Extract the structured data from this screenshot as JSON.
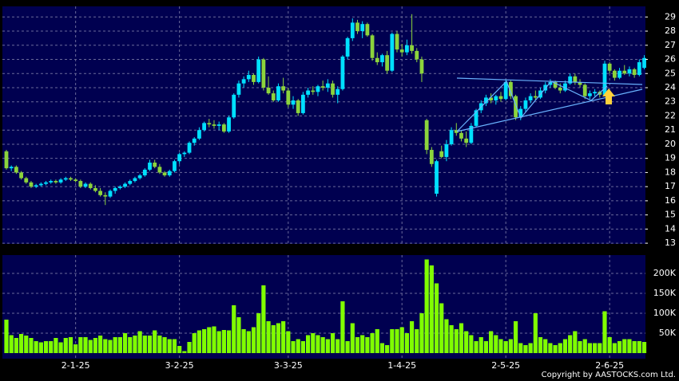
{
  "chart_data": {
    "type": "candlestick",
    "categories": [
      null,
      null,
      null,
      null,
      null,
      null,
      null,
      null,
      null,
      null,
      null,
      null,
      null,
      null,
      "2-1-25",
      null,
      null,
      null,
      null,
      null,
      null,
      null,
      null,
      null,
      null,
      null,
      null,
      null,
      null,
      null,
      null,
      null,
      null,
      null,
      null,
      "3-2-25",
      null,
      null,
      null,
      null,
      null,
      null,
      null,
      null,
      null,
      null,
      null,
      null,
      null,
      null,
      null,
      null,
      null,
      null,
      null,
      null,
      null,
      "3-3-25",
      null,
      null,
      null,
      null,
      null,
      null,
      null,
      null,
      null,
      null,
      null,
      null,
      null,
      null,
      null,
      null,
      null,
      null,
      null,
      null,
      null,
      null,
      "1-4-25",
      null,
      null,
      null,
      null,
      null,
      null,
      null,
      null,
      null,
      null,
      null,
      null,
      null,
      null,
      null,
      null,
      null,
      null,
      null,
      null,
      "2-5-25",
      null,
      null,
      null,
      null,
      null,
      null,
      null,
      null,
      null,
      null,
      null,
      null,
      null,
      null,
      null,
      null,
      null,
      null,
      null,
      null,
      "2-6-25",
      null,
      null,
      null,
      null,
      null,
      null,
      null
    ],
    "ohlc": [
      [
        19.5,
        19.6,
        18.2,
        18.3
      ],
      [
        18.3,
        18.5,
        18.1,
        18.4
      ],
      [
        18.4,
        18.5,
        17.9,
        18.0
      ],
      [
        18.0,
        18.1,
        17.5,
        17.6
      ],
      [
        17.6,
        17.7,
        17.2,
        17.3
      ],
      [
        17.3,
        17.4,
        16.9,
        17.0
      ],
      [
        17.0,
        17.2,
        16.9,
        17.1
      ],
      [
        17.1,
        17.3,
        17.0,
        17.2
      ],
      [
        17.2,
        17.4,
        17.1,
        17.3
      ],
      [
        17.3,
        17.5,
        17.2,
        17.4
      ],
      [
        17.4,
        17.5,
        17.2,
        17.3
      ],
      [
        17.3,
        17.6,
        17.2,
        17.5
      ],
      [
        17.5,
        17.7,
        17.4,
        17.6
      ],
      [
        17.6,
        17.7,
        17.4,
        17.5
      ],
      [
        17.5,
        17.6,
        17.3,
        17.4
      ],
      [
        17.4,
        17.5,
        16.9,
        17.0
      ],
      [
        17.0,
        17.3,
        16.9,
        17.2
      ],
      [
        17.2,
        17.3,
        16.8,
        16.9
      ],
      [
        16.9,
        17.1,
        16.6,
        16.7
      ],
      [
        16.7,
        16.9,
        16.3,
        16.4
      ],
      [
        16.4,
        16.6,
        15.7,
        16.3
      ],
      [
        16.3,
        16.8,
        16.2,
        16.7
      ],
      [
        16.7,
        17.0,
        16.5,
        16.9
      ],
      [
        16.9,
        17.1,
        16.8,
        17.0
      ],
      [
        17.0,
        17.3,
        16.9,
        17.2
      ],
      [
        17.2,
        17.5,
        17.1,
        17.4
      ],
      [
        17.4,
        17.7,
        17.3,
        17.6
      ],
      [
        17.6,
        17.9,
        17.5,
        17.8
      ],
      [
        17.8,
        18.3,
        17.7,
        18.2
      ],
      [
        18.2,
        18.9,
        18.1,
        18.7
      ],
      [
        18.7,
        18.9,
        18.3,
        18.4
      ],
      [
        18.4,
        18.6,
        17.9,
        18.0
      ],
      [
        18.0,
        18.1,
        17.7,
        17.8
      ],
      [
        17.8,
        18.2,
        17.7,
        18.1
      ],
      [
        18.1,
        18.9,
        18.0,
        18.8
      ],
      [
        18.8,
        19.4,
        18.6,
        19.3
      ],
      [
        19.3,
        19.5,
        19.1,
        19.4
      ],
      [
        19.4,
        20.2,
        19.3,
        20.1
      ],
      [
        20.1,
        20.5,
        19.9,
        20.4
      ],
      [
        20.4,
        21.2,
        20.3,
        21.0
      ],
      [
        21.0,
        21.6,
        20.9,
        21.5
      ],
      [
        21.5,
        21.8,
        21.2,
        21.4
      ],
      [
        21.4,
        21.7,
        21.1,
        21.3
      ],
      [
        21.3,
        21.6,
        21.0,
        21.4
      ],
      [
        21.4,
        21.5,
        20.8,
        20.9
      ],
      [
        20.9,
        22.0,
        20.8,
        21.9
      ],
      [
        21.9,
        23.6,
        21.8,
        23.5
      ],
      [
        23.5,
        24.5,
        23.3,
        24.3
      ],
      [
        24.3,
        24.8,
        24.0,
        24.6
      ],
      [
        24.6,
        25.2,
        24.4,
        24.9
      ],
      [
        24.9,
        25.0,
        24.2,
        24.4
      ],
      [
        24.4,
        26.2,
        24.3,
        26.0
      ],
      [
        26.0,
        26.1,
        23.8,
        24.0
      ],
      [
        24.0,
        24.8,
        23.5,
        23.6
      ],
      [
        23.6,
        23.8,
        23.0,
        23.1
      ],
      [
        23.1,
        24.3,
        23.0,
        24.1
      ],
      [
        24.1,
        24.7,
        23.6,
        23.8
      ],
      [
        23.8,
        24.0,
        22.6,
        22.8
      ],
      [
        22.8,
        23.4,
        22.5,
        23.1
      ],
      [
        23.1,
        23.2,
        22.0,
        22.2
      ],
      [
        22.2,
        23.7,
        22.1,
        23.5
      ],
      [
        23.5,
        24.0,
        23.3,
        23.8
      ],
      [
        23.8,
        24.1,
        23.5,
        23.7
      ],
      [
        23.7,
        24.2,
        23.4,
        24.1
      ],
      [
        24.1,
        24.5,
        23.8,
        24.0
      ],
      [
        24.0,
        24.6,
        23.7,
        24.3
      ],
      [
        24.3,
        24.5,
        23.3,
        23.5
      ],
      [
        23.5,
        24.1,
        22.9,
        23.9
      ],
      [
        23.9,
        26.3,
        23.8,
        26.2
      ],
      [
        26.2,
        27.6,
        26.0,
        27.5
      ],
      [
        27.5,
        28.9,
        27.3,
        28.6
      ],
      [
        28.6,
        28.8,
        27.8,
        28.0
      ],
      [
        28.0,
        28.7,
        27.5,
        28.5
      ],
      [
        28.5,
        28.6,
        27.6,
        27.7
      ],
      [
        27.7,
        27.8,
        25.9,
        26.1
      ],
      [
        26.1,
        26.5,
        25.6,
        25.8
      ],
      [
        25.8,
        26.4,
        25.5,
        26.3
      ],
      [
        26.3,
        26.6,
        25.0,
        25.2
      ],
      [
        25.2,
        27.9,
        25.1,
        27.8
      ],
      [
        27.8,
        28.0,
        26.5,
        26.7
      ],
      [
        26.7,
        27.1,
        26.2,
        26.5
      ],
      [
        26.5,
        27.4,
        26.3,
        27.0
      ],
      [
        27.0,
        29.2,
        26.4,
        26.6
      ],
      [
        26.6,
        26.8,
        25.8,
        26.0
      ],
      [
        26.0,
        26.2,
        24.4,
        25.0
      ],
      [
        21.7,
        21.8,
        19.3,
        19.6
      ],
      [
        19.6,
        19.8,
        18.4,
        18.6
      ],
      [
        16.5,
        18.9,
        16.3,
        18.8
      ],
      [
        19.5,
        19.9,
        19.0,
        19.1
      ],
      [
        19.1,
        20.3,
        18.8,
        20.0
      ],
      [
        20.0,
        21.2,
        19.9,
        21.0
      ],
      [
        21.0,
        21.5,
        20.6,
        20.8
      ],
      [
        20.8,
        21.0,
        20.2,
        20.4
      ],
      [
        20.4,
        20.9,
        19.8,
        20.1
      ],
      [
        20.1,
        21.5,
        20.0,
        21.3
      ],
      [
        21.3,
        22.5,
        21.2,
        22.4
      ],
      [
        22.4,
        23.1,
        22.2,
        22.9
      ],
      [
        22.9,
        23.5,
        22.7,
        23.3
      ],
      [
        23.3,
        23.6,
        22.9,
        23.1
      ],
      [
        23.1,
        23.5,
        22.8,
        23.4
      ],
      [
        23.4,
        23.7,
        23.0,
        23.2
      ],
      [
        23.2,
        24.6,
        23.1,
        24.4
      ],
      [
        24.4,
        24.5,
        23.2,
        23.4
      ],
      [
        23.4,
        23.5,
        21.7,
        21.9
      ],
      [
        21.9,
        22.7,
        21.7,
        22.5
      ],
      [
        22.5,
        23.3,
        22.3,
        23.1
      ],
      [
        23.1,
        23.6,
        22.9,
        23.4
      ],
      [
        23.4,
        23.8,
        23.1,
        23.3
      ],
      [
        23.3,
        24.0,
        23.2,
        23.8
      ],
      [
        23.8,
        24.4,
        23.6,
        24.2
      ],
      [
        24.2,
        24.6,
        24.0,
        24.4
      ],
      [
        24.4,
        24.5,
        23.9,
        24.0
      ],
      [
        24.0,
        24.3,
        23.6,
        23.8
      ],
      [
        23.8,
        24.5,
        23.7,
        24.3
      ],
      [
        24.3,
        25.0,
        24.2,
        24.8
      ],
      [
        24.8,
        25.0,
        24.2,
        24.4
      ],
      [
        24.4,
        24.6,
        24.0,
        24.2
      ],
      [
        24.2,
        24.3,
        23.2,
        23.4
      ],
      [
        23.4,
        23.8,
        23.2,
        23.6
      ],
      [
        23.6,
        23.9,
        23.4,
        23.7
      ],
      [
        23.7,
        23.8,
        23.3,
        23.5
      ],
      [
        23.5,
        25.9,
        23.4,
        25.7
      ],
      [
        25.7,
        25.8,
        25.0,
        25.2
      ],
      [
        25.2,
        25.3,
        24.5,
        24.7
      ],
      [
        24.7,
        25.4,
        24.6,
        25.2
      ],
      [
        25.2,
        25.6,
        24.9,
        25.0
      ],
      [
        25.0,
        25.5,
        24.8,
        25.3
      ],
      [
        25.3,
        25.4,
        24.7,
        24.9
      ],
      [
        24.9,
        26.0,
        24.8,
        25.8
      ],
      [
        25.4,
        26.3,
        25.3,
        26.1
      ]
    ],
    "up_color": "#00e0ff",
    "down_color": "#8cd43c",
    "ylim": [
      12.95,
      29.75
    ],
    "yticks": [
      13,
      14,
      15,
      16,
      17,
      18,
      19,
      20,
      21,
      22,
      23,
      24,
      25,
      26,
      27,
      28,
      29
    ],
    "grid": true,
    "volume": {
      "type": "bar",
      "color": "#80ff00",
      "values": [
        84000,
        45000,
        38000,
        48000,
        44000,
        38000,
        30000,
        27000,
        30000,
        30000,
        38000,
        27000,
        38000,
        40000,
        22000,
        40000,
        40000,
        33000,
        38000,
        44000,
        35000,
        33000,
        40000,
        40000,
        50000,
        40000,
        44000,
        55000,
        44000,
        44000,
        57000,
        44000,
        40000,
        35000,
        35000,
        18000,
        5000,
        28000,
        50000,
        57000,
        60000,
        65000,
        67000,
        55000,
        58000,
        57000,
        120000,
        90000,
        60000,
        55000,
        65000,
        100000,
        170000,
        80000,
        70000,
        75000,
        80000,
        55000,
        30000,
        35000,
        30000,
        45000,
        50000,
        45000,
        40000,
        35000,
        50000,
        35000,
        130000,
        30000,
        75000,
        40000,
        45000,
        40000,
        50000,
        60000,
        25000,
        20000,
        60000,
        60000,
        65000,
        50000,
        80000,
        60000,
        100000,
        235000,
        220000,
        175000,
        125000,
        85000,
        70000,
        60000,
        75000,
        55000,
        45000,
        30000,
        40000,
        30000,
        55000,
        45000,
        35000,
        30000,
        35000,
        80000,
        25000,
        20000,
        25000,
        100000,
        40000,
        35000,
        25000,
        20000,
        25000,
        35000,
        45000,
        55000,
        30000,
        35000,
        25000,
        25000,
        25000,
        105000,
        40000,
        25000,
        30000,
        35000,
        35000,
        30000,
        30000,
        28000
      ],
      "ylim": [
        0,
        246000
      ],
      "yticks": [
        {
          "value": 50000,
          "label": "50K"
        },
        {
          "value": 100000,
          "label": "100K"
        },
        {
          "value": 150000,
          "label": "150K"
        },
        {
          "value": 200000,
          "label": "200K"
        }
      ]
    },
    "copyright": "Copyright by AASTOCKS.com Ltd."
  }
}
